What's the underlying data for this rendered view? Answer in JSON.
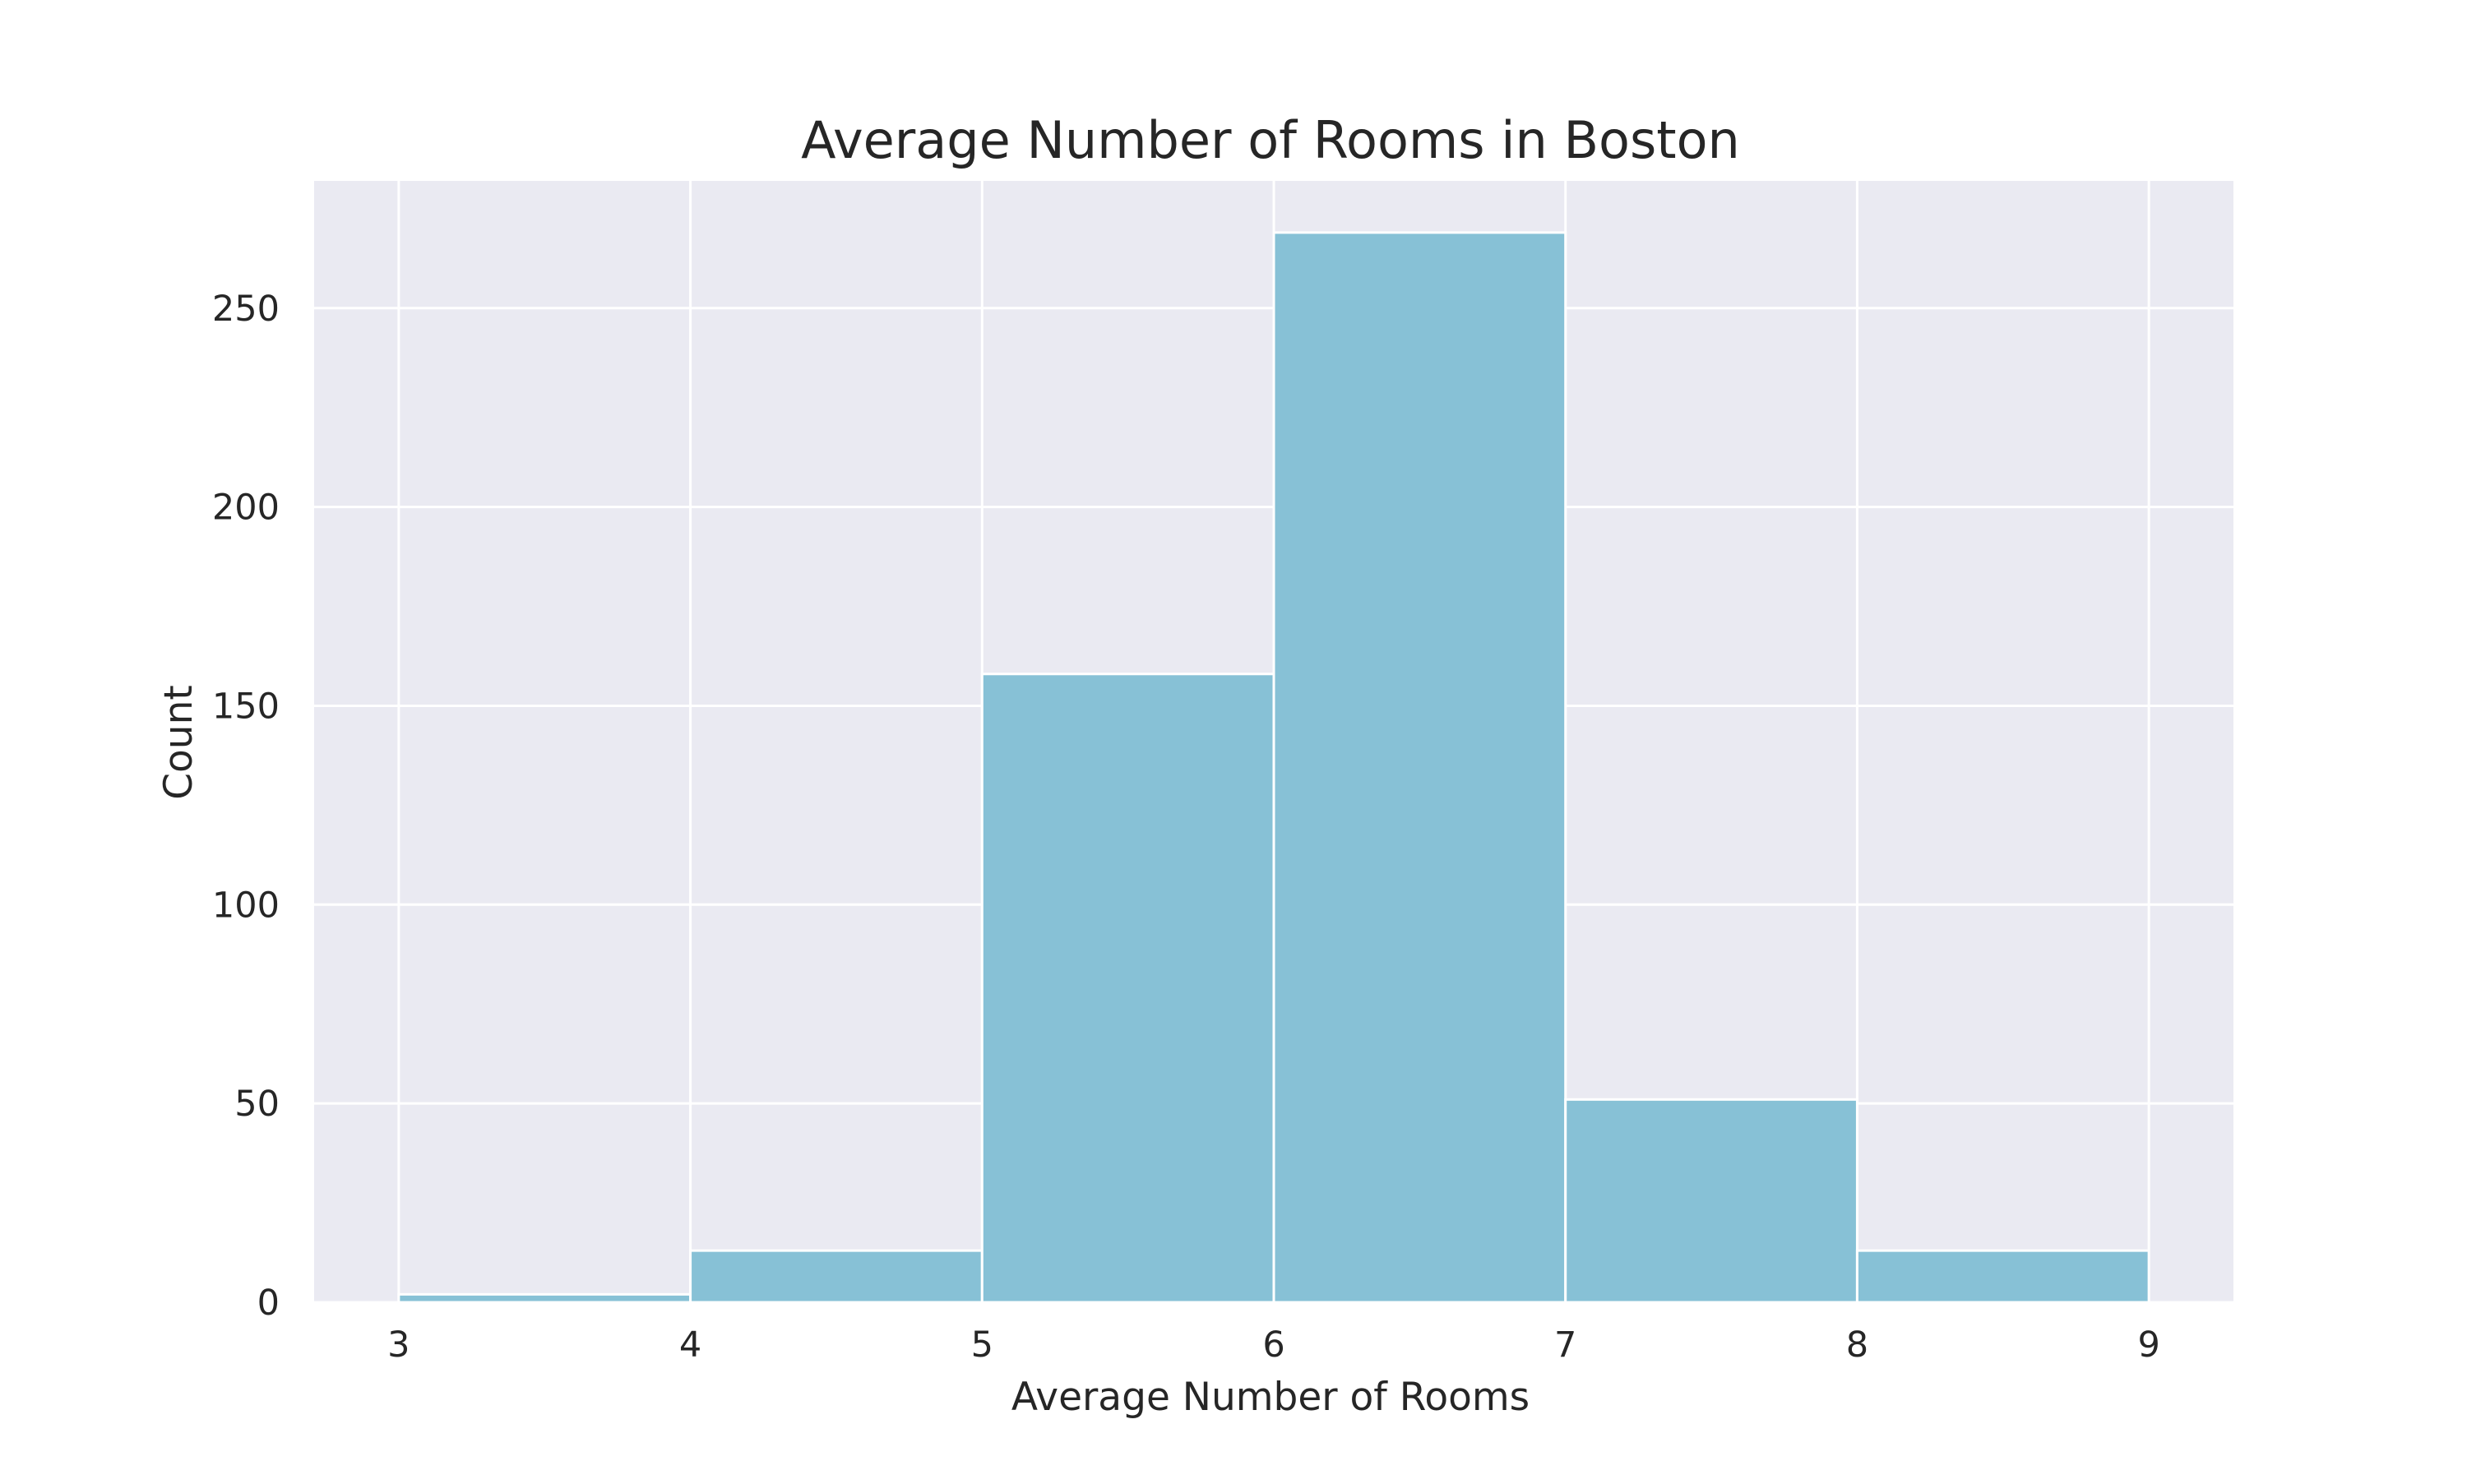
{
  "chart_data": {
    "type": "bar",
    "title": "Average Number of Rooms in Boston",
    "xlabel": "Average Number of Rooms",
    "ylabel": "Count",
    "bins": [
      {
        "start": 3,
        "end": 4,
        "count": 2
      },
      {
        "start": 4,
        "end": 5,
        "count": 13
      },
      {
        "start": 5,
        "end": 6,
        "count": 158
      },
      {
        "start": 6,
        "end": 7,
        "count": 269
      },
      {
        "start": 7,
        "end": 8,
        "count": 51
      },
      {
        "start": 8,
        "end": 9,
        "count": 13
      }
    ],
    "xticks": [
      "3",
      "4",
      "5",
      "6",
      "7",
      "8",
      "9"
    ],
    "yticks": [
      "0",
      "50",
      "100",
      "150",
      "200",
      "250"
    ],
    "xlim": [
      2.71,
      9.29
    ],
    "ylim": [
      0,
      282
    ],
    "grid": true,
    "colors": {
      "bar": "#87c1d6",
      "bar_edge": "#ffffff",
      "plot_background": "#eaeaf2",
      "grid": "#ffffff"
    }
  }
}
